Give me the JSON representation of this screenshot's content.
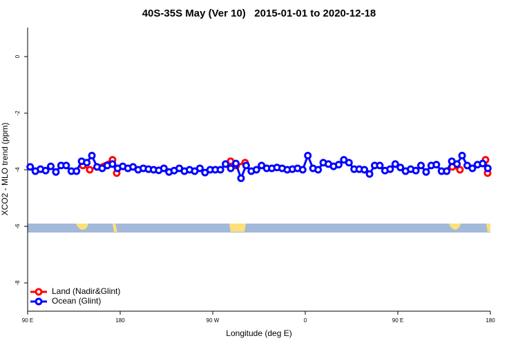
{
  "chart_data": {
    "type": "line",
    "title": "40S-35S May (Ver 10)   2015-01-01 to 2020-12-18",
    "x_label": "Longitude (deg E)",
    "y_label": "XCO2 - MLO trend (ppm)",
    "xlim": [
      90,
      540
    ],
    "xticks": [
      {
        "value": 90,
        "label": "90 E"
      },
      180,
      {
        "value": 270,
        "label": "90 W"
      },
      {
        "value": 360,
        "label": "0"
      },
      {
        "value": 450,
        "label": "90 E"
      },
      180
    ],
    "ylim": [
      -9,
      1
    ],
    "yticks": [
      0,
      -2,
      -4,
      -6,
      -8
    ],
    "legend": "bottom-left",
    "series": [
      {
        "name": "Land (Nadir&Glint)",
        "color": "#ff0000",
        "x": [
          143.7,
          150.4,
          172.6,
          176.6,
          null,
          287.4,
          292.8,
          301.5,
          null,
          503,
          510.4,
          null,
          535.3,
          537.3
        ],
        "values": [
          -3.85,
          -4.0,
          -3.65,
          -4.12,
          null,
          -3.7,
          -3.85,
          -3.75,
          null,
          -3.9,
          -4.0,
          null,
          -3.65,
          -4.12
        ]
      },
      {
        "name": "Ocean (Glint)",
        "color": "#0000ff",
        "x": [
          92.5,
          97.5,
          102.5,
          107.5,
          112.5,
          117.5,
          122.5,
          127.5,
          132.5,
          137.5,
          142.5,
          147.5,
          152.5,
          157.5,
          162.5,
          167.5,
          172.5,
          177.5,
          182.5,
          187.5,
          192.5,
          197.5,
          202.5,
          207.5,
          212.5,
          217.5,
          222.5,
          227.5,
          232.5,
          237.5,
          242.5,
          247.5,
          252.5,
          257.5,
          262.5,
          267.5,
          272.5,
          277.5,
          282.5,
          287.5,
          292.5,
          297.5,
          302.5,
          307.5,
          312.5,
          317.5,
          322.5,
          327.5,
          332.5,
          337.5,
          342.5,
          347.5,
          352.5,
          357.5,
          362.5,
          367.5,
          372.5,
          377.5,
          382.5,
          387.5,
          392.5,
          397.5,
          402.5,
          407.5,
          412.5,
          417.5,
          422.5,
          427.5,
          432.5,
          437.5,
          442.5,
          447.5,
          452.5,
          457.5,
          462.5,
          467.5,
          472.5,
          477.5,
          482.5,
          487.5,
          492.5,
          497.5,
          502.5,
          507.5,
          512.5,
          517.5,
          522.5,
          527.5,
          532.5,
          537.5
        ],
        "values": [
          -3.9,
          -4.05,
          -3.98,
          -4.03,
          -3.88,
          -4.08,
          -3.85,
          -3.85,
          -4.05,
          -4.05,
          -3.7,
          -3.75,
          -3.5,
          -3.9,
          -3.95,
          -3.85,
          -3.8,
          -3.95,
          -3.88,
          -3.95,
          -3.9,
          -4.0,
          -3.95,
          -3.98,
          -4.0,
          -4.02,
          -3.95,
          -4.08,
          -4.03,
          -3.95,
          -4.05,
          -4.0,
          -4.05,
          -3.95,
          -4.1,
          -4.0,
          -4.0,
          -4.0,
          -3.8,
          -3.95,
          -3.78,
          -4.3,
          -3.85,
          -4.05,
          -4.0,
          -3.85,
          -3.95,
          -3.95,
          -3.92,
          -3.95,
          -4.0,
          -3.98,
          -3.95,
          -4.0,
          -3.5,
          -3.95,
          -4.0,
          -3.75,
          -3.8,
          -3.88,
          -3.82,
          -3.65,
          -3.75,
          -3.98,
          -3.98,
          -4.0,
          -4.15,
          -3.85,
          -3.85,
          -4.03,
          -3.98,
          -3.8,
          -3.92,
          -4.05,
          -3.98,
          -4.03,
          -3.85,
          -4.08,
          -3.85,
          -3.82,
          -4.05,
          -4.05,
          -3.7,
          -3.8,
          -3.5,
          -3.85,
          -3.95,
          -3.82,
          -3.78,
          -3.95
        ]
      }
    ]
  }
}
